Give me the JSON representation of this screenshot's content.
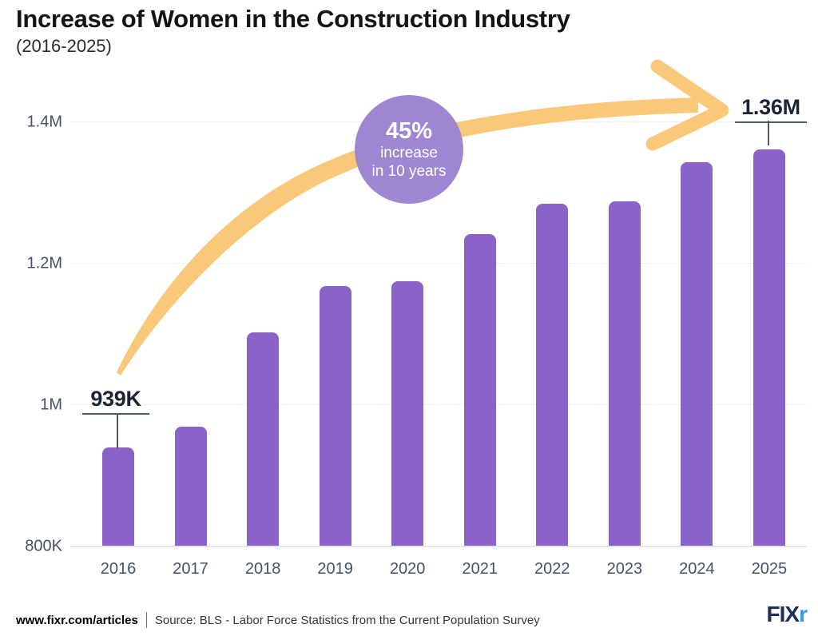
{
  "header": {
    "title": "Increase of Women in the Construction Industry",
    "subtitle": "(2016-2025)"
  },
  "chart_data": {
    "type": "bar",
    "title": "Increase of Women in the Construction Industry (2016-2025)",
    "categories": [
      "2016",
      "2017",
      "2018",
      "2019",
      "2020",
      "2021",
      "2022",
      "2023",
      "2024",
      "2025"
    ],
    "values_thousands": [
      939,
      968,
      1102,
      1167,
      1174,
      1241,
      1284,
      1287,
      1342,
      1360
    ],
    "unit": "workers (thousands)",
    "xlabel": "",
    "ylabel": "",
    "yticks": [
      "1.4M",
      "1.2M",
      "1M",
      "800K"
    ],
    "ytick_values_thousands": [
      1400,
      1200,
      1000,
      800
    ],
    "ylim_thousands": [
      800,
      1430
    ],
    "grid": true,
    "legend": "none",
    "annotations": {
      "first_bar_label": "939K",
      "last_bar_label": "1.36M",
      "callout_big": "45%",
      "callout_line2": "increase",
      "callout_line3": "in 10 years"
    }
  },
  "footer": {
    "site": "www.fixr.com/articles",
    "source": "Source: BLS - Labor Force Statistics from the Current Population Survey",
    "logo_fix": "FIX",
    "logo_r": "r"
  },
  "colors": {
    "bar": "#8a63c9",
    "circle": "#9d87d3",
    "arrow": "#f9c878",
    "grid": "#edf1f7",
    "axis_line": "#e3e6ed",
    "text_dark": "#141414",
    "text_axis": "#455166",
    "label": "#1b2433",
    "connector": "#4e5966",
    "footer_text": "#33373d",
    "logo_navy": "#1e2f5a",
    "logo_blue": "#2f9bef"
  }
}
